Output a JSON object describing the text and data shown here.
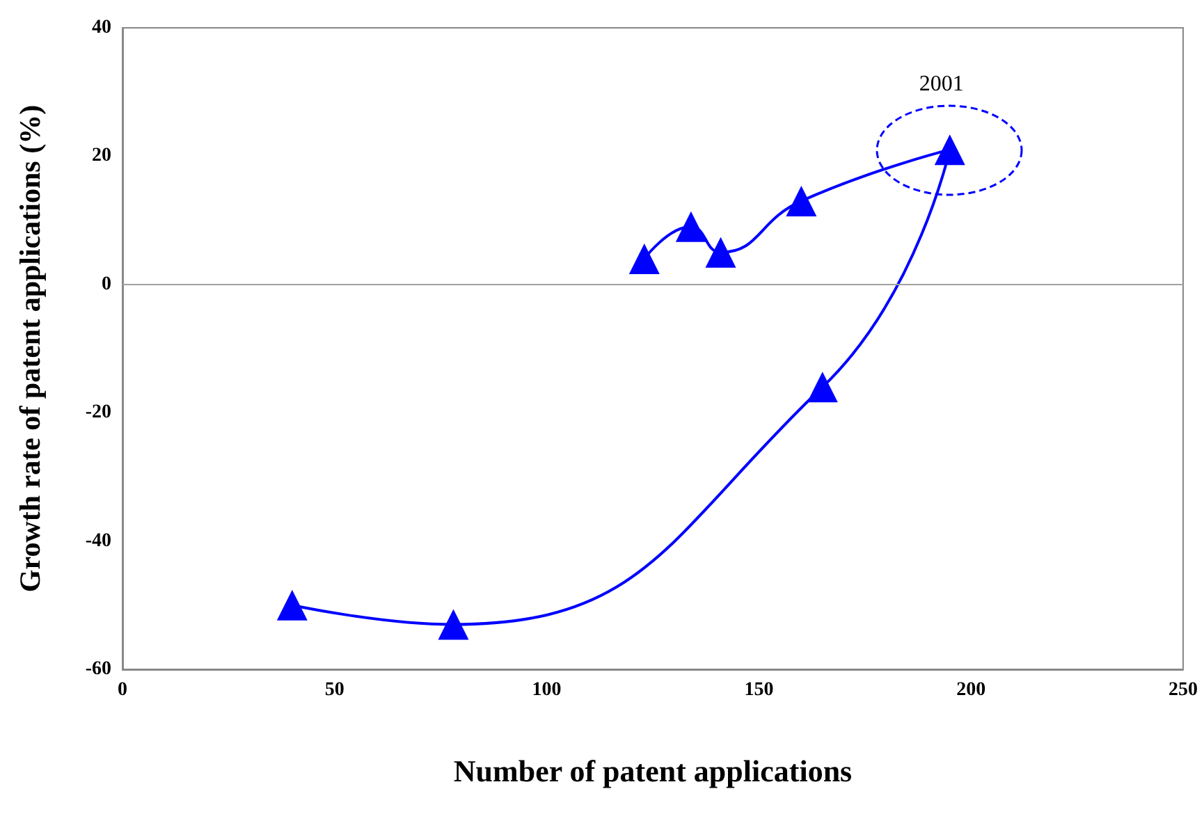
{
  "chart_data": {
    "type": "line",
    "xlabel": "Number of patent applications",
    "ylabel": "Growth rate of patent applications (%)",
    "series": [
      {
        "color": "#0000ff",
        "x": [
          123,
          134,
          141,
          160,
          195,
          165,
          78,
          40
        ],
        "values": [
          4,
          9,
          5,
          13,
          21,
          -16,
          -53,
          -50
        ]
      }
    ],
    "xlim": [
      0,
      250
    ],
    "xticks": [
      0,
      50,
      100,
      150,
      200,
      250
    ],
    "ylim": [
      -60,
      40
    ],
    "yticks": [
      -60,
      -40,
      -20,
      0,
      20,
      40
    ],
    "grid": false,
    "marker": "triangle",
    "line_style": "solid",
    "ref_lines": [
      {
        "axis": "y",
        "value": 0,
        "label": null,
        "color": "#a0a0a0"
      }
    ],
    "annotations": [
      {
        "text": "2001",
        "x": 195,
        "y": 21
      }
    ]
  }
}
